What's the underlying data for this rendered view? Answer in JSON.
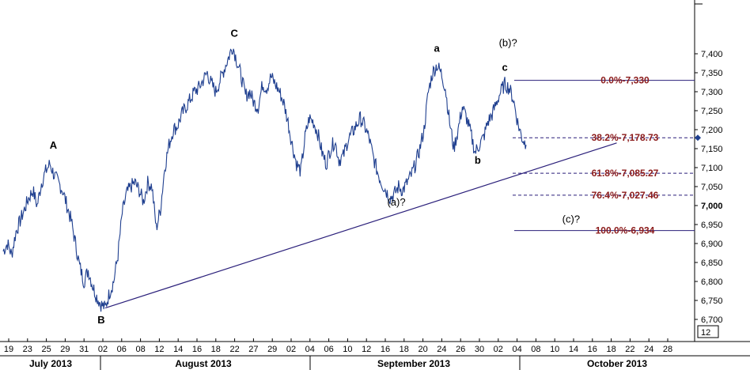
{
  "chart_data": {
    "type": "line",
    "y_range": [
      6650,
      7500
    ],
    "y_ticks": [
      "6,700",
      "6,750",
      "6,800",
      "6,850",
      "6,900",
      "6,950",
      "7,000",
      "7,050",
      "7,100",
      "7,150",
      "7,200",
      "7,250",
      "7,300",
      "7,350",
      "7,400"
    ],
    "x_ticks": [
      "19",
      "23",
      "25",
      "29",
      "31",
      "02",
      "06",
      "08",
      "12",
      "14",
      "16",
      "18",
      "22",
      "27",
      "29",
      "02",
      "04",
      "06",
      "10",
      "12",
      "16",
      "18",
      "20",
      "24",
      "26",
      "30",
      "02",
      "04",
      "08",
      "10",
      "14",
      "16",
      "18",
      "22",
      "24",
      "28"
    ],
    "months": [
      "July 2013",
      "August 2013",
      "September 2013",
      "October 2013"
    ],
    "corner_label": "12",
    "price": [
      6880,
      6900,
      6870,
      6930,
      6960,
      6990,
      7020,
      7040,
      7000,
      7060,
      7090,
      7110,
      7080,
      7060,
      7040,
      7000,
      6960,
      6900,
      6840,
      6800,
      6830,
      6790,
      6760,
      6740,
      6730,
      6770,
      6800,
      6870,
      6980,
      7030,
      7050,
      7060,
      7040,
      7010,
      7060,
      7050,
      6940,
      6990,
      7100,
      7160,
      7200,
      7210,
      7240,
      7260,
      7280,
      7300,
      7310,
      7330,
      7350,
      7320,
      7300,
      7330,
      7360,
      7390,
      7420,
      7380,
      7340,
      7290,
      7300,
      7270,
      7260,
      7320,
      7310,
      7340,
      7320,
      7300,
      7270,
      7220,
      7160,
      7110,
      7090,
      7180,
      7230,
      7220,
      7190,
      7140,
      7110,
      7150,
      7170,
      7120,
      7130,
      7170,
      7190,
      7210,
      7230,
      7210,
      7180,
      7130,
      7090,
      7060,
      7040,
      7020,
      7030,
      7050,
      7040,
      7060,
      7080,
      7110,
      7150,
      7200,
      7300,
      7350,
      7370,
      7350,
      7310,
      7220,
      7150,
      7200,
      7260,
      7230,
      7190,
      7140,
      7160,
      7180,
      7220,
      7240,
      7270,
      7300,
      7320,
      7310,
      7280,
      7220,
      7180,
      7160
    ],
    "series": [
      {
        "values": []
      }
    ],
    "wave_labels": [
      {
        "text": "A",
        "date_index": 12,
        "price": 7150
      },
      {
        "text": "B",
        "date_index": 24,
        "price": 6690
      },
      {
        "text": "C",
        "date_index": 54,
        "price": 7445
      },
      {
        "text": "(a)?",
        "date_index": 91,
        "price": 7000
      },
      {
        "text": "a",
        "date_index": 102,
        "price": 7405
      },
      {
        "text": "b",
        "date_index": 112,
        "price": 7110
      },
      {
        "text": "c",
        "date_index": 118,
        "price": 7355
      },
      {
        "text": "(b)?",
        "date_index": 118,
        "price": 7420
      },
      {
        "text": "(c)?",
        "date_index": 128,
        "price": 6955
      }
    ],
    "trendline": {
      "from": {
        "date_index": 24,
        "price": 6730
      },
      "to": {
        "date_index": 135,
        "price": 7165
      }
    },
    "fibonacci": [
      {
        "label": "0.0%-7,330",
        "price": 7330,
        "style": "solid"
      },
      {
        "label": "38.2%-7,178.73",
        "price": 7178.73,
        "style": "dashed"
      },
      {
        "label": "61.8%-7,085.27",
        "price": 7085.27,
        "style": "dashed"
      },
      {
        "label": "76.4%-7,027.46",
        "price": 7027.46,
        "style": "dashed"
      },
      {
        "label": "100.0%-6,934",
        "price": 6934,
        "style": "solid"
      }
    ],
    "colors": {
      "price": "#1f3f8f",
      "trend": "#2a1f7a",
      "fib_line": "#2a1f7a",
      "fib_text": "#8b1a1a",
      "marker": "#1f3f8f"
    }
  }
}
